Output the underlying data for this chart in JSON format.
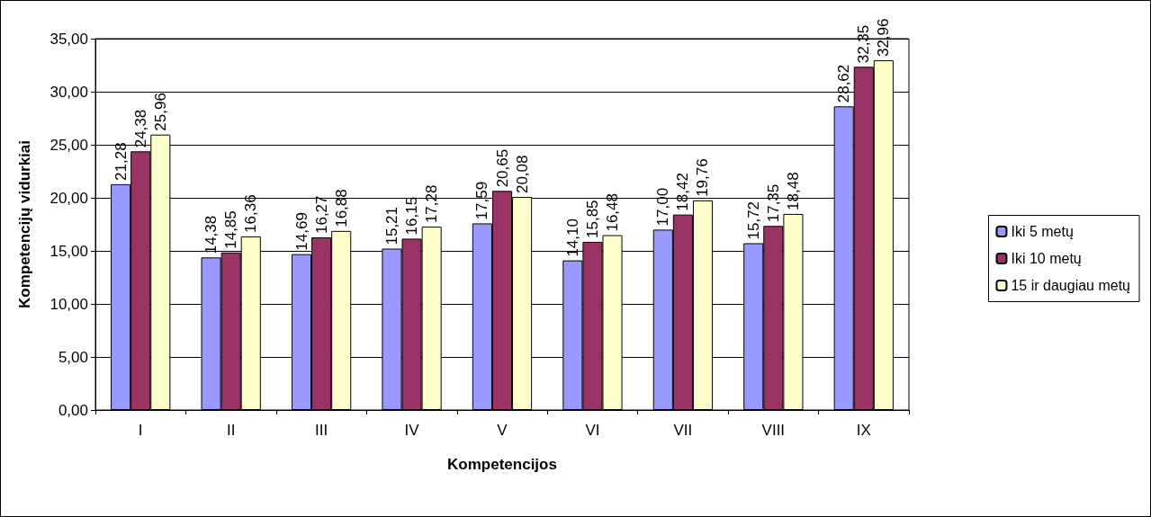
{
  "chart_data": {
    "type": "bar",
    "xlabel": "Kompetencijos",
    "ylabel": "Kompetencijų vidurkiai",
    "categories": [
      "I",
      "II",
      "III",
      "IV",
      "V",
      "VI",
      "VII",
      "VIII",
      "IX"
    ],
    "series": [
      {
        "name": "Iki 5 metų",
        "color": "#9999ff",
        "values": [
          21.28,
          14.38,
          14.69,
          15.21,
          17.59,
          14.1,
          17.0,
          15.72,
          28.62
        ],
        "value_labels": [
          "21,28",
          "14,38",
          "14,69",
          "15,21",
          "17,59",
          "14,10",
          "17,00",
          "15,72",
          "28,62"
        ]
      },
      {
        "name": "Iki 10 metų",
        "color": "#993366",
        "values": [
          24.38,
          14.85,
          16.27,
          16.15,
          20.65,
          15.85,
          18.42,
          17.35,
          32.35
        ],
        "value_labels": [
          "24,38",
          "14,85",
          "16,27",
          "16,15",
          "20,65",
          "15,85",
          "18,42",
          "17,35",
          "32,35"
        ]
      },
      {
        "name": "15 ir daugiau metų",
        "color": "#ffffcc",
        "values": [
          25.96,
          16.36,
          16.88,
          17.28,
          20.08,
          16.48,
          19.76,
          18.48,
          32.96
        ],
        "value_labels": [
          "25,96",
          "16,36",
          "16,88",
          "17,28",
          "20,08",
          "16,48",
          "19,76",
          "18,48",
          "32,96"
        ]
      }
    ],
    "ylim": [
      0,
      35
    ],
    "yticks": [
      {
        "value": 0,
        "label": "0,00"
      },
      {
        "value": 5,
        "label": "5,00"
      },
      {
        "value": 10,
        "label": "10,00"
      },
      {
        "value": 15,
        "label": "15,00"
      },
      {
        "value": 20,
        "label": "20,00"
      },
      {
        "value": 25,
        "label": "25,00"
      },
      {
        "value": 30,
        "label": "30,00"
      },
      {
        "value": 35,
        "label": "35,00"
      }
    ],
    "grid": "y",
    "legend": "right"
  }
}
